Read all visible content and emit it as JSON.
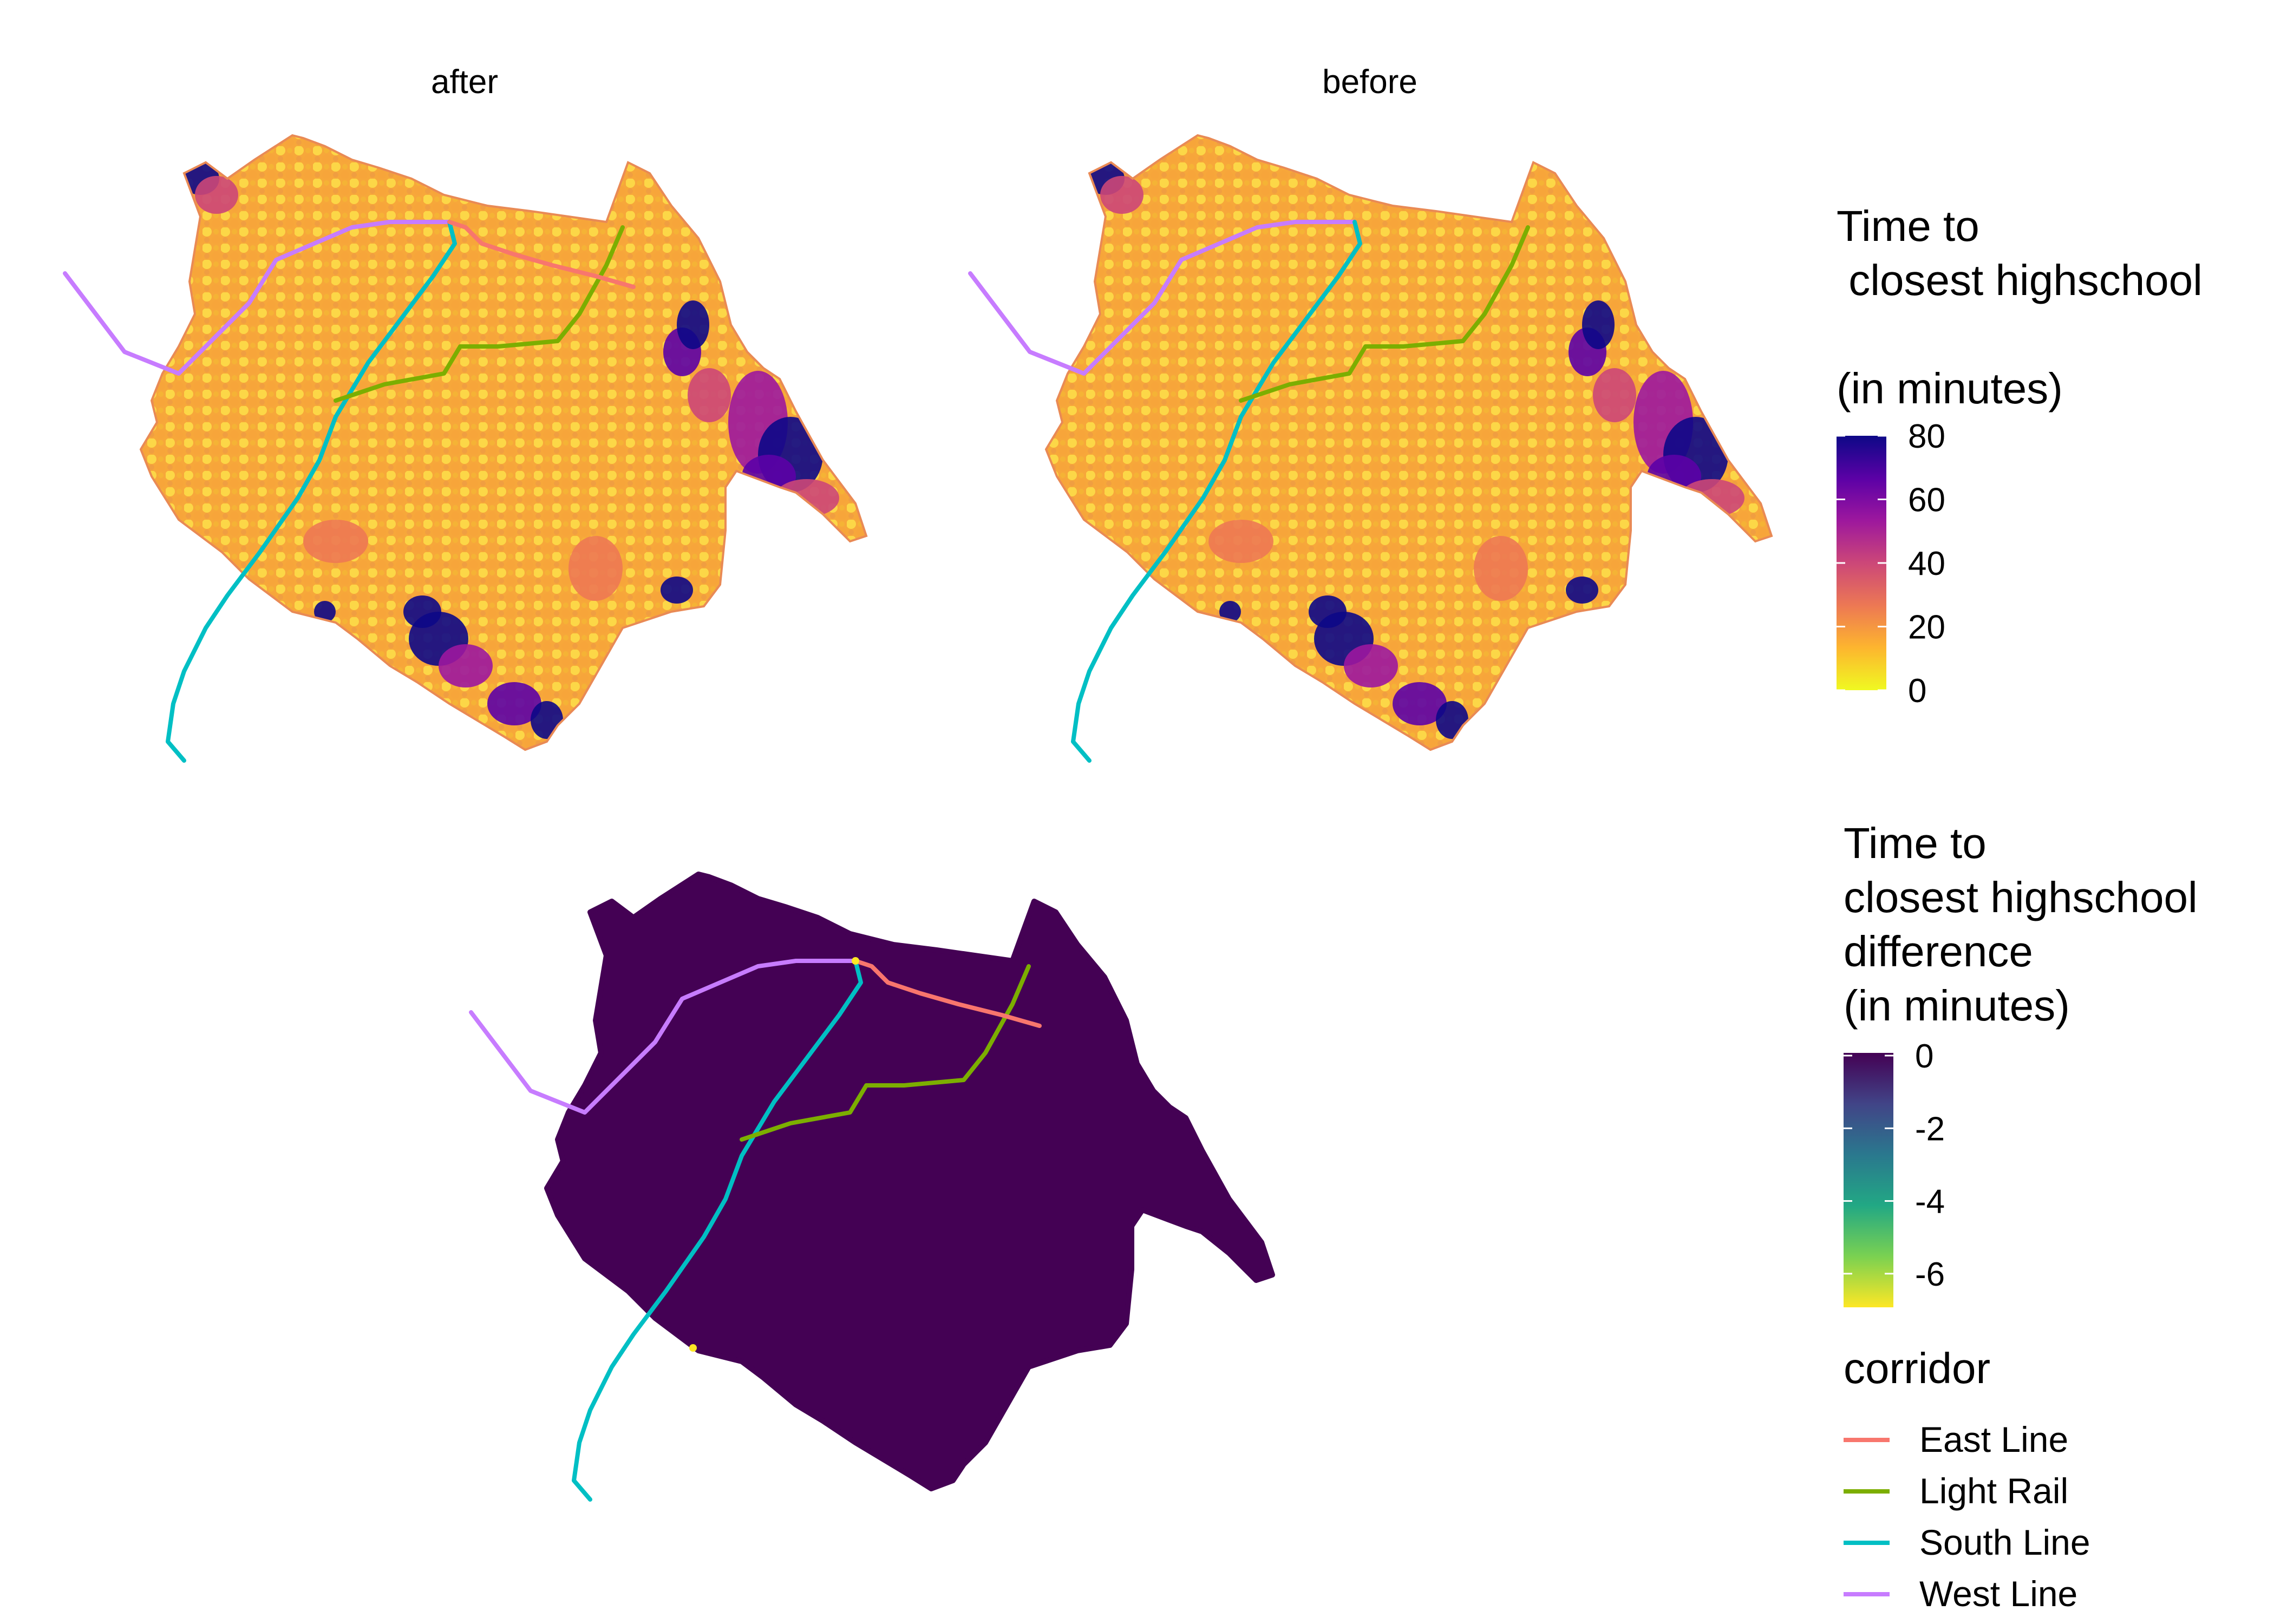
{
  "facets": {
    "after_label": "after",
    "before_label": "before"
  },
  "legend_time": {
    "title_lines": [
      "Time to",
      " closest highschool",
      "",
      "(in minutes)"
    ],
    "ticks": [
      "80",
      "60",
      "40",
      "20",
      "0"
    ],
    "range": [
      0,
      80
    ],
    "palette": [
      "#f0f921",
      "#fdb42f",
      "#ed7953",
      "#cc4778",
      "#9c179e",
      "#5c01a6",
      "#0d0887"
    ]
  },
  "legend_diff": {
    "title_lines": [
      "Time to",
      "closest highschool",
      "difference",
      "(in minutes)"
    ],
    "ticks": [
      "0",
      "-2",
      "-4",
      "-6"
    ],
    "range": [
      -7,
      0
    ],
    "palette": [
      "#fde725",
      "#7ad151",
      "#22a884",
      "#2a788e",
      "#414487",
      "#440154"
    ]
  },
  "legend_corridor": {
    "title": "corridor",
    "entries": [
      {
        "label": "East Line",
        "color": "#f8766d"
      },
      {
        "label": "Light Rail",
        "color": "#7cae00"
      },
      {
        "label": "South Line",
        "color": "#00bfc4"
      },
      {
        "label": "West Line",
        "color": "#c77cff"
      }
    ]
  },
  "map_colors": {
    "difference_fill": "#440154",
    "difference_changed": "#fde725"
  }
}
